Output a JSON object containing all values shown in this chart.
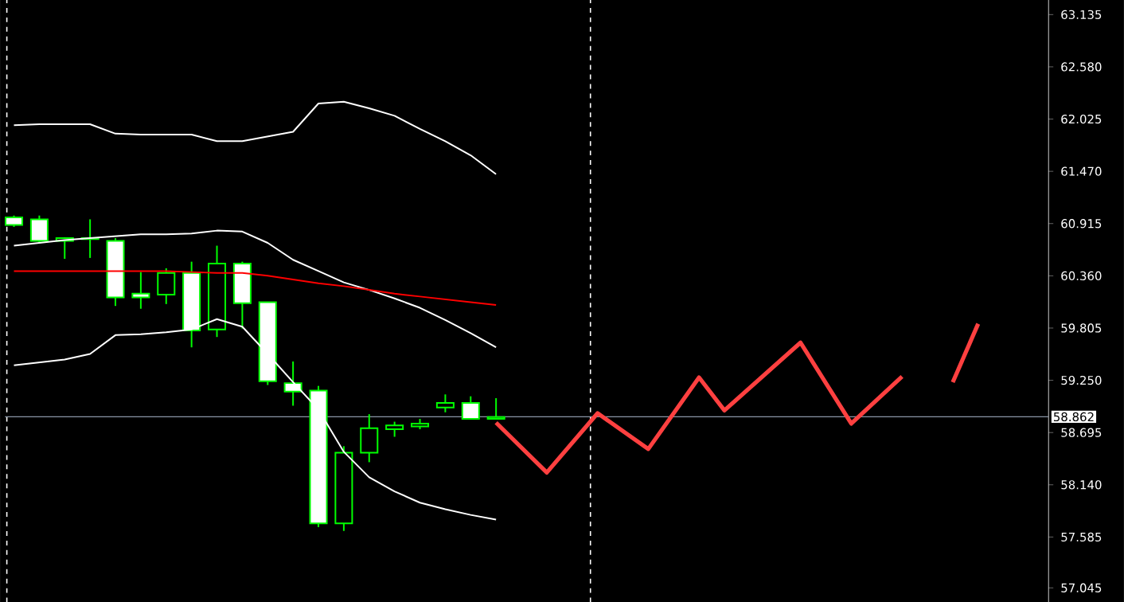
{
  "chart_data": {
    "type": "candlestick",
    "color": "#00ff00",
    "categories": [
      null,
      null,
      null,
      null,
      null,
      null,
      null,
      null,
      null,
      null,
      null,
      null,
      null,
      null,
      null,
      null,
      null,
      null,
      null,
      null,
      null,
      null,
      null,
      null,
      null,
      null,
      null,
      null,
      null,
      null,
      null,
      null,
      null,
      null,
      null,
      null,
      null,
      null,
      null,
      null
    ],
    "ohlc": [
      [
        60.98,
        61.0,
        60.88,
        60.9
      ],
      [
        60.96,
        61.0,
        60.71,
        60.73
      ],
      [
        60.73,
        60.77,
        60.54,
        60.76
      ],
      [
        60.75,
        60.96,
        60.55,
        60.76
      ],
      [
        60.73,
        60.76,
        60.04,
        60.13
      ],
      [
        60.17,
        60.4,
        60.01,
        60.13
      ],
      [
        60.16,
        60.44,
        60.06,
        60.39
      ],
      [
        60.39,
        60.51,
        59.6,
        59.78
      ],
      [
        59.79,
        60.68,
        59.71,
        60.49
      ],
      [
        60.49,
        60.51,
        59.8,
        60.07
      ],
      [
        60.08,
        60.08,
        59.2,
        59.24
      ],
      [
        59.22,
        59.45,
        58.98,
        59.13
      ],
      [
        59.14,
        59.19,
        57.69,
        57.73
      ],
      [
        57.73,
        58.55,
        57.65,
        58.48
      ],
      [
        58.48,
        58.89,
        58.38,
        58.74
      ],
      [
        58.73,
        58.81,
        58.65,
        58.77
      ],
      [
        58.76,
        58.84,
        58.73,
        58.79
      ],
      [
        58.96,
        59.1,
        58.91,
        59.01
      ],
      [
        59.01,
        59.08,
        58.84,
        58.84
      ],
      [
        58.84,
        59.06,
        58.84,
        58.86
      ],
      null,
      null,
      null,
      null,
      null,
      null,
      null,
      null,
      null,
      null,
      null,
      null,
      null,
      null,
      null,
      null,
      null,
      null,
      null,
      null
    ],
    "series": [
      {
        "type": "line",
        "color": "#ffffff",
        "values": [
          61.96,
          61.97,
          61.97,
          61.97,
          61.87,
          61.86,
          61.86,
          61.86,
          61.79,
          61.79,
          61.84,
          61.89,
          62.19,
          62.21,
          62.14,
          62.06,
          61.92,
          61.79,
          61.64,
          61.44,
          null,
          null,
          null,
          null,
          null,
          null,
          null,
          null,
          null,
          null,
          null,
          null,
          null,
          null,
          null,
          null,
          null,
          null,
          null,
          null
        ]
      },
      {
        "type": "line",
        "color": "#ffffff",
        "values": [
          60.68,
          60.71,
          60.74,
          60.76,
          60.78,
          60.8,
          60.8,
          60.81,
          60.84,
          60.83,
          60.71,
          60.53,
          60.41,
          60.29,
          60.21,
          60.12,
          60.02,
          59.89,
          59.75,
          59.6,
          null,
          null,
          null,
          null,
          null,
          null,
          null,
          null,
          null,
          null,
          null,
          null,
          null,
          null,
          null,
          null,
          null,
          null,
          null,
          null
        ]
      },
      {
        "type": "line",
        "color": "#ffffff",
        "values": [
          59.41,
          59.44,
          59.47,
          59.53,
          59.73,
          59.74,
          59.76,
          59.79,
          59.9,
          59.82,
          59.53,
          59.23,
          58.94,
          58.49,
          58.22,
          58.07,
          57.95,
          57.88,
          57.82,
          57.77,
          null,
          null,
          null,
          null,
          null,
          null,
          null,
          null,
          null,
          null,
          null,
          null,
          null,
          null,
          null,
          null,
          null,
          null,
          null,
          null
        ]
      },
      {
        "type": "line",
        "color": "#ff0000",
        "values": [
          60.41,
          60.41,
          60.41,
          60.41,
          60.41,
          60.41,
          60.41,
          60.4,
          60.39,
          60.39,
          60.36,
          60.32,
          60.28,
          60.25,
          60.21,
          60.17,
          60.14,
          60.11,
          60.08,
          60.05,
          null,
          null,
          null,
          null,
          null,
          null,
          null,
          null,
          null,
          null,
          null,
          null,
          null,
          null,
          null,
          null,
          null,
          null,
          null,
          null
        ]
      },
      {
        "type": "line",
        "color": "#ff4040",
        "values": [
          null,
          null,
          null,
          null,
          null,
          null,
          null,
          null,
          null,
          null,
          null,
          null,
          null,
          null,
          null,
          null,
          null,
          null,
          null,
          58.8,
          null,
          58.27,
          null,
          58.9,
          null,
          58.52,
          null,
          59.28,
          58.93,
          null,
          null,
          59.65,
          null,
          58.79,
          null,
          59.29,
          null,
          null,
          null,
          null
        ]
      },
      {
        "type": "line",
        "color": "#ff4040",
        "values": [
          null,
          null,
          null,
          null,
          null,
          null,
          null,
          null,
          null,
          null,
          null,
          null,
          null,
          null,
          null,
          null,
          null,
          null,
          null,
          null,
          null,
          null,
          null,
          null,
          null,
          null,
          null,
          null,
          null,
          null,
          null,
          null,
          null,
          null,
          null,
          null,
          null,
          59.23,
          59.85,
          null
        ]
      }
    ],
    "ylim": [
      56.89,
      63.29
    ],
    "yticks": [
      63.135,
      {
        "value": 62.58,
        "label": "62.580"
      },
      62.025,
      {
        "value": 61.47,
        "label": "61.470"
      },
      60.915,
      {
        "value": 60.36,
        "label": "60.360"
      },
      59.805,
      {
        "value": 59.25,
        "label": "59.250"
      },
      58.695,
      {
        "value": 58.14,
        "label": "58.140"
      },
      57.585,
      57.045
    ],
    "ref_lines": [
      {
        "axis": "y",
        "value": 58.862,
        "label": "58.862",
        "color": "#8a96a6"
      }
    ],
    "tick_labels": "y"
  }
}
